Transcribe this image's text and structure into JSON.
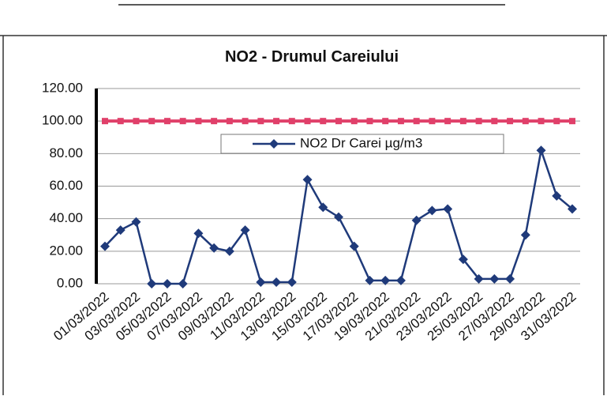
{
  "chart_data": {
    "type": "line",
    "title": "NO2 - Drumul Careiului",
    "categories": [
      "01/03/2022",
      null,
      "03/03/2022",
      null,
      "05/03/2022",
      null,
      "07/03/2022",
      null,
      "09/03/2022",
      null,
      "11/03/2022",
      null,
      "13/03/2022",
      null,
      "15/03/2022",
      null,
      "17/03/2022",
      null,
      "19/03/2022",
      null,
      "21/03/2022",
      null,
      "23/03/2022",
      null,
      "25/03/2022",
      null,
      "27/03/2022",
      null,
      "29/03/2022",
      null,
      "31/03/2022"
    ],
    "series": [
      {
        "name": "NO2 Dr Carei  µg/m3",
        "color": "#1f3a7a",
        "marker": "diamond",
        "values": [
          23,
          33,
          38,
          0,
          0,
          0,
          31,
          22,
          20,
          33,
          1,
          1,
          1,
          64,
          47,
          41,
          23,
          2,
          2,
          2,
          39,
          45,
          46,
          15,
          3,
          3,
          3,
          30,
          82,
          54,
          46
        ]
      },
      {
        "color": "#e0406a",
        "marker": "square",
        "values": [
          100,
          100,
          100,
          100,
          100,
          100,
          100,
          100,
          100,
          100,
          100,
          100,
          100,
          100,
          100,
          100,
          100,
          100,
          100,
          100,
          100,
          100,
          100,
          100,
          100,
          100,
          100,
          100,
          100,
          100,
          100
        ]
      }
    ],
    "ylim": [
      0,
      120
    ],
    "yticks": [
      {
        "value": 0,
        "label": "0.00"
      },
      {
        "value": 20,
        "label": "20.00"
      },
      {
        "value": 40,
        "label": "40.00"
      },
      {
        "value": 60,
        "label": "60.00"
      },
      {
        "value": 80,
        "label": "80.00"
      },
      {
        "value": 100,
        "label": "100.00"
      },
      {
        "value": 120,
        "label": "120.00"
      }
    ],
    "grid": true
  }
}
